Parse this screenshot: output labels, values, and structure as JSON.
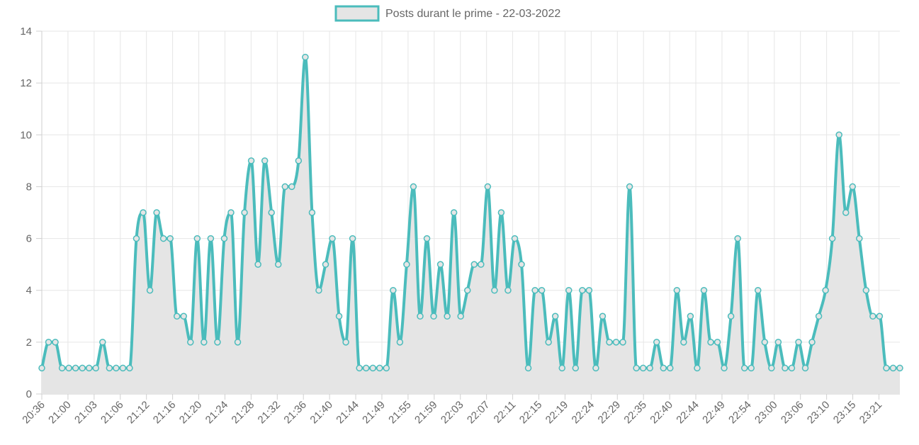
{
  "chart_data": {
    "type": "line",
    "legend": {
      "label": "Posts durant le prime - 22-03-2022",
      "placement": "top-center"
    },
    "series": [
      {
        "name": "Posts durant le prime - 22-03-2022",
        "color": "#4bbcbc",
        "fill": "#e5e5e5",
        "values": [
          1,
          2,
          2,
          1,
          1,
          1,
          1,
          1,
          1,
          2,
          1,
          1,
          1,
          1,
          6,
          7,
          4,
          7,
          6,
          6,
          3,
          3,
          2,
          6,
          2,
          6,
          2,
          6,
          7,
          2,
          7,
          9,
          5,
          9,
          7,
          5,
          8,
          8,
          9,
          13,
          7,
          4,
          5,
          6,
          3,
          2,
          6,
          1,
          1,
          1,
          1,
          1,
          4,
          2,
          5,
          8,
          3,
          6,
          3,
          5,
          3,
          7,
          3,
          4,
          5,
          5,
          8,
          4,
          7,
          4,
          6,
          5,
          1,
          4,
          4,
          2,
          3,
          1,
          4,
          1,
          4,
          4,
          1,
          3,
          2,
          2,
          2,
          8,
          1,
          1,
          1,
          2,
          1,
          1,
          4,
          2,
          3,
          1,
          4,
          2,
          2,
          1,
          3,
          6,
          1,
          1,
          4,
          2,
          1,
          2,
          1,
          1,
          2,
          1,
          2,
          3,
          4,
          6,
          10,
          7,
          8,
          6,
          4,
          3,
          3,
          1,
          1,
          1
        ]
      }
    ],
    "x_tick_labels": [
      "20:36",
      "21:00",
      "21:03",
      "21:06",
      "21:12",
      "21:16",
      "21:20",
      "21:24",
      "21:28",
      "21:32",
      "21:36",
      "21:40",
      "21:44",
      "21:49",
      "21:55",
      "21:59",
      "22:03",
      "22:07",
      "22:11",
      "22:15",
      "22:19",
      "22:24",
      "22:29",
      "22:35",
      "22:40",
      "22:44",
      "22:49",
      "22:54",
      "23:00",
      "23:06",
      "23:10",
      "23:15",
      "23:21"
    ],
    "xlabel": "",
    "ylabel": "",
    "ylim": [
      0,
      14
    ],
    "y_ticks": [
      0,
      2,
      4,
      6,
      8,
      10,
      12,
      14
    ],
    "grid": true
  }
}
